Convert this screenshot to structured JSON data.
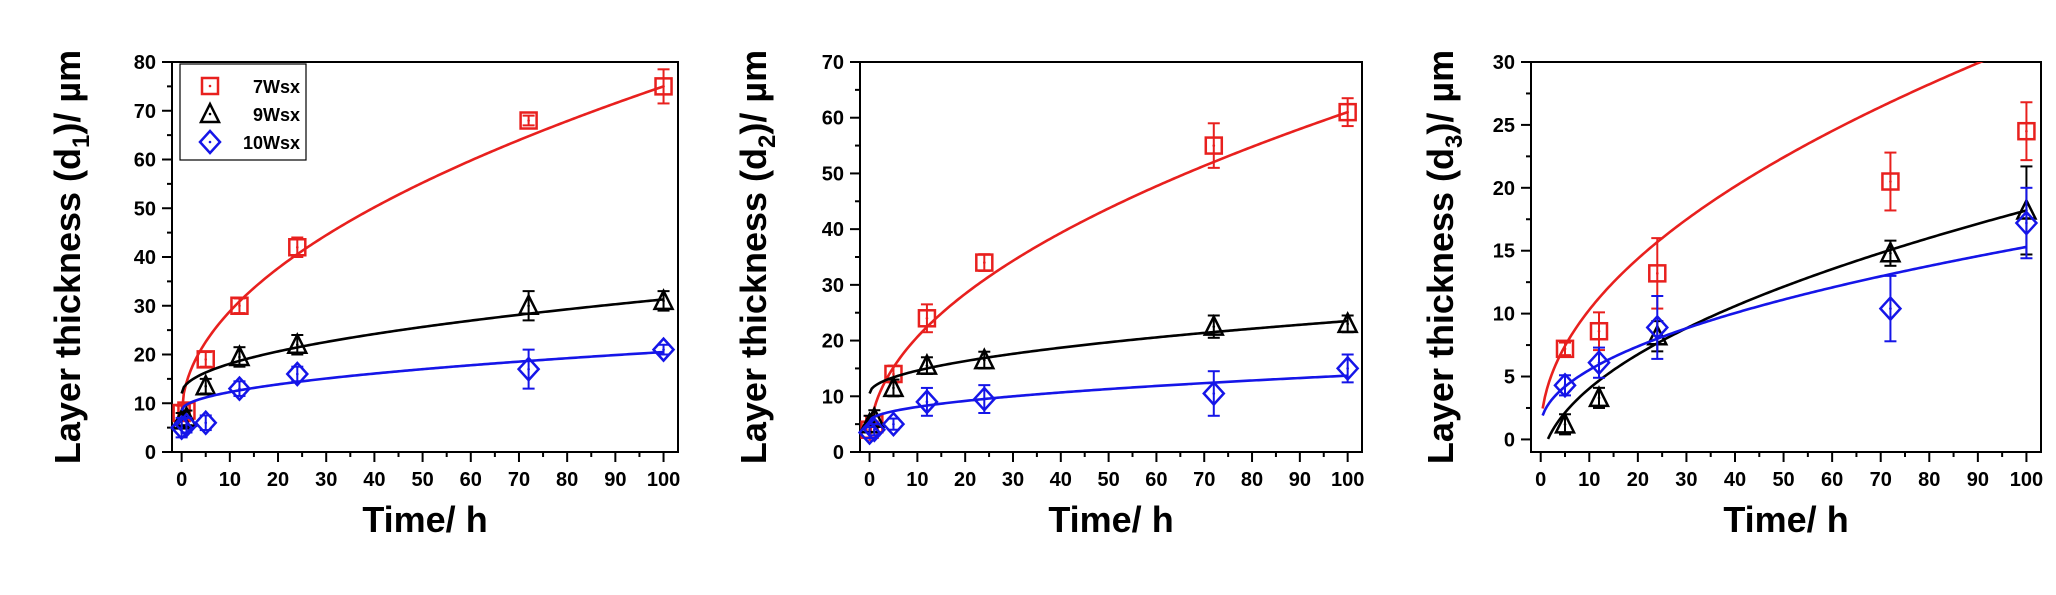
{
  "chart_data": [
    {
      "type": "scatter",
      "panel": "d1",
      "xlabel": "Time/ h",
      "ylabel_prefix": "Layer thickness (d",
      "ylabel_sub": "1",
      "ylabel_suffix": ")/ µm",
      "xlim": [
        -2,
        103
      ],
      "ylim": [
        0,
        80
      ],
      "xticks": [
        0,
        10,
        20,
        30,
        40,
        50,
        60,
        70,
        80,
        90,
        100
      ],
      "yticks": [
        0,
        10,
        20,
        30,
        40,
        50,
        60,
        70,
        80
      ],
      "legend": {
        "position": "top-left"
      },
      "series": [
        {
          "name": "7Wsx",
          "color": "#e8201e",
          "marker": "square",
          "x": [
            0,
            1,
            5,
            12,
            24,
            72,
            100
          ],
          "y": [
            8,
            8.5,
            19,
            30,
            42,
            68,
            75
          ],
          "err": [
            1.5,
            1.5,
            1.5,
            1.5,
            2,
            1,
            3.5
          ],
          "fit": {
            "a": 7.5,
            "b": 6.75,
            "p": 0.5
          }
        },
        {
          "name": "9Wsx",
          "color": "#000000",
          "marker": "triangle",
          "x": [
            0,
            1,
            5,
            12,
            24,
            72,
            100
          ],
          "y": [
            6.5,
            7,
            13.5,
            19.5,
            22,
            30,
            31
          ],
          "err": [
            1.5,
            1.5,
            1.5,
            2,
            2,
            3,
            2
          ],
          "fit": {
            "a": 12,
            "b": 1.93,
            "p": 0.5
          }
        },
        {
          "name": "10Wsx",
          "color": "#1515e8",
          "marker": "diamond",
          "x": [
            0,
            1,
            5,
            12,
            24,
            72,
            100
          ],
          "y": [
            5,
            5.5,
            6,
            13,
            16,
            17,
            21
          ],
          "err": [
            2,
            1.5,
            1.5,
            1.5,
            1.5,
            4,
            1
          ],
          "fit": {
            "a": 8.5,
            "b": 1.2,
            "p": 0.5
          }
        }
      ]
    },
    {
      "type": "scatter",
      "panel": "d2",
      "xlabel": "Time/ h",
      "ylabel_prefix": "Layer thickness (d",
      "ylabel_sub": "2",
      "ylabel_suffix": ")/ µm",
      "xlim": [
        -2,
        103
      ],
      "ylim": [
        0,
        70
      ],
      "xticks": [
        0,
        10,
        20,
        30,
        40,
        50,
        60,
        70,
        80,
        90,
        100
      ],
      "yticks": [
        0,
        10,
        20,
        30,
        40,
        50,
        60,
        70
      ],
      "series": [
        {
          "name": "7Wsx",
          "color": "#e8201e",
          "marker": "square",
          "x": [
            0,
            1,
            5,
            12,
            24,
            72,
            100
          ],
          "y": [
            4,
            5,
            14,
            24,
            34,
            55,
            61
          ],
          "err": [
            1.5,
            1.5,
            1.5,
            2.5,
            1.5,
            4,
            2.5
          ],
          "fit": {
            "a": 2,
            "b": 5.9,
            "p": 0.5
          }
        },
        {
          "name": "9Wsx",
          "color": "#000000",
          "marker": "triangle",
          "x": [
            0,
            1,
            5,
            12,
            24,
            72,
            100
          ],
          "y": [
            5,
            6,
            11.5,
            15.5,
            16.5,
            22.5,
            23
          ],
          "err": [
            1.5,
            1.5,
            1.5,
            1.5,
            1.5,
            2,
            1.5
          ],
          "fit": {
            "a": 10.5,
            "b": 1.3,
            "p": 0.5
          }
        },
        {
          "name": "10Wsx",
          "color": "#1515e8",
          "marker": "diamond",
          "x": [
            0,
            1,
            5,
            12,
            24,
            72,
            100
          ],
          "y": [
            3.5,
            4,
            5,
            9,
            9.5,
            10.5,
            15
          ],
          "err": [
            1,
            1,
            1,
            2.5,
            2.5,
            4,
            2.5
          ],
          "fit": {
            "a": 5.5,
            "b": 0.82,
            "p": 0.5
          }
        }
      ]
    },
    {
      "type": "scatter",
      "panel": "d3",
      "xlabel": "Time/ h",
      "ylabel_prefix": "Layer thickness (d",
      "ylabel_sub": "3",
      "ylabel_suffix": ")/ µm",
      "xlim": [
        -2,
        103
      ],
      "ylim": [
        -1,
        30
      ],
      "xticks": [
        0,
        10,
        20,
        30,
        40,
        50,
        60,
        70,
        80,
        90,
        100
      ],
      "yticks": [
        0,
        5,
        10,
        15,
        20,
        25,
        30
      ],
      "series": [
        {
          "name": "7Wsx",
          "color": "#e8201e",
          "marker": "square",
          "x": [
            5,
            12,
            24,
            72,
            100
          ],
          "y": [
            7.2,
            8.6,
            13.2,
            20.5,
            24.5
          ],
          "err": [
            0.5,
            1.5,
            2.8,
            2.3,
            2.3
          ],
          "fit": {
            "a": 0.5,
            "b": 3.1,
            "p": 0.5,
            "x0": 0.4
          }
        },
        {
          "name": "9Wsx",
          "color": "#000000",
          "marker": "triangle",
          "x": [
            5,
            12,
            24,
            72,
            100
          ],
          "y": [
            1.2,
            3.3,
            8.2,
            14.8,
            18.2
          ],
          "err": [
            0.8,
            0.8,
            1.2,
            1,
            3.5
          ],
          "fit": {
            "a": -2.5,
            "b": 2.07,
            "p": 0.5,
            "x0": 1.5
          }
        },
        {
          "name": "10Wsx",
          "color": "#1515e8",
          "marker": "diamond",
          "x": [
            5,
            12,
            24,
            72,
            100
          ],
          "y": [
            4.3,
            6.1,
            8.9,
            10.4,
            17.2
          ],
          "err": [
            0.8,
            1.2,
            2.5,
            2.6,
            2.8
          ],
          "fit": {
            "a": 1,
            "b": 1.43,
            "p": 0.5,
            "x0": 0.4
          }
        }
      ]
    }
  ]
}
